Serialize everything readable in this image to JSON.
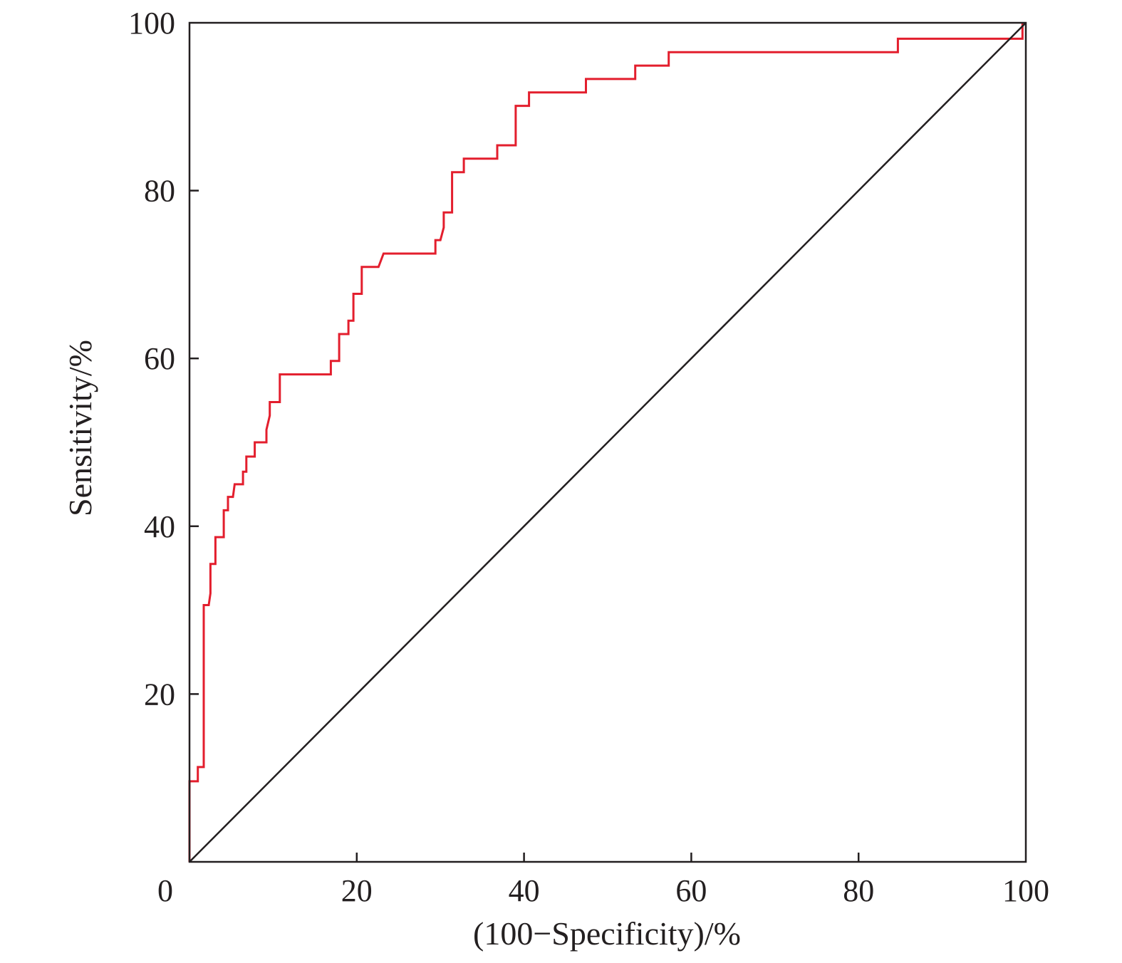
{
  "chart_data": {
    "type": "line",
    "title": "",
    "xlabel": "(100−Specificity)/%",
    "ylabel": "Sensitivity/%",
    "xlim": [
      0,
      100
    ],
    "ylim": [
      0,
      100
    ],
    "x_ticks": [
      0,
      20,
      40,
      60,
      80,
      100
    ],
    "y_ticks": [
      20,
      40,
      60,
      80,
      100
    ],
    "grid": false,
    "series": [
      {
        "color": "#e31e2d",
        "points": [
          [
            0,
            0
          ],
          [
            0,
            9.6
          ],
          [
            1.0,
            9.6
          ],
          [
            1.0,
            11.3
          ],
          [
            1.7,
            11.3
          ],
          [
            1.7,
            30.6
          ],
          [
            2.3,
            30.6
          ],
          [
            2.5,
            32.0
          ],
          [
            2.5,
            35.5
          ],
          [
            3.1,
            35.5
          ],
          [
            3.1,
            38.7
          ],
          [
            4.1,
            38.7
          ],
          [
            4.1,
            41.9
          ],
          [
            4.6,
            41.9
          ],
          [
            4.6,
            43.5
          ],
          [
            5.2,
            43.5
          ],
          [
            5.4,
            45.0
          ],
          [
            6.4,
            45.0
          ],
          [
            6.4,
            46.5
          ],
          [
            6.8,
            46.5
          ],
          [
            6.8,
            48.3
          ],
          [
            7.8,
            48.3
          ],
          [
            7.8,
            50.0
          ],
          [
            9.2,
            50.0
          ],
          [
            9.2,
            51.5
          ],
          [
            9.6,
            53.2
          ],
          [
            9.6,
            54.8
          ],
          [
            10.8,
            54.8
          ],
          [
            10.8,
            58.1
          ],
          [
            16.9,
            58.1
          ],
          [
            16.9,
            59.7
          ],
          [
            17.9,
            59.7
          ],
          [
            17.9,
            62.9
          ],
          [
            19.0,
            62.9
          ],
          [
            19.0,
            64.5
          ],
          [
            19.6,
            64.5
          ],
          [
            19.6,
            67.7
          ],
          [
            20.6,
            67.7
          ],
          [
            20.6,
            70.9
          ],
          [
            22.6,
            70.9
          ],
          [
            23.2,
            72.5
          ],
          [
            29.4,
            72.5
          ],
          [
            29.4,
            74.1
          ],
          [
            30.0,
            74.1
          ],
          [
            30.4,
            75.6
          ],
          [
            30.4,
            77.4
          ],
          [
            31.4,
            77.4
          ],
          [
            31.4,
            82.2
          ],
          [
            32.8,
            82.2
          ],
          [
            32.8,
            83.8
          ],
          [
            36.8,
            83.8
          ],
          [
            36.8,
            85.4
          ],
          [
            39.0,
            85.4
          ],
          [
            39.0,
            90.1
          ],
          [
            40.6,
            90.1
          ],
          [
            40.6,
            91.7
          ],
          [
            47.4,
            91.7
          ],
          [
            47.4,
            93.3
          ],
          [
            53.3,
            93.3
          ],
          [
            53.3,
            94.9
          ],
          [
            57.3,
            94.9
          ],
          [
            57.3,
            96.5
          ],
          [
            84.7,
            96.5
          ],
          [
            84.7,
            98.1
          ],
          [
            99.6,
            98.1
          ],
          [
            99.6,
            100
          ]
        ]
      },
      {
        "color": "#231f20",
        "points": [
          [
            0,
            0
          ],
          [
            100,
            100
          ]
        ]
      }
    ]
  }
}
